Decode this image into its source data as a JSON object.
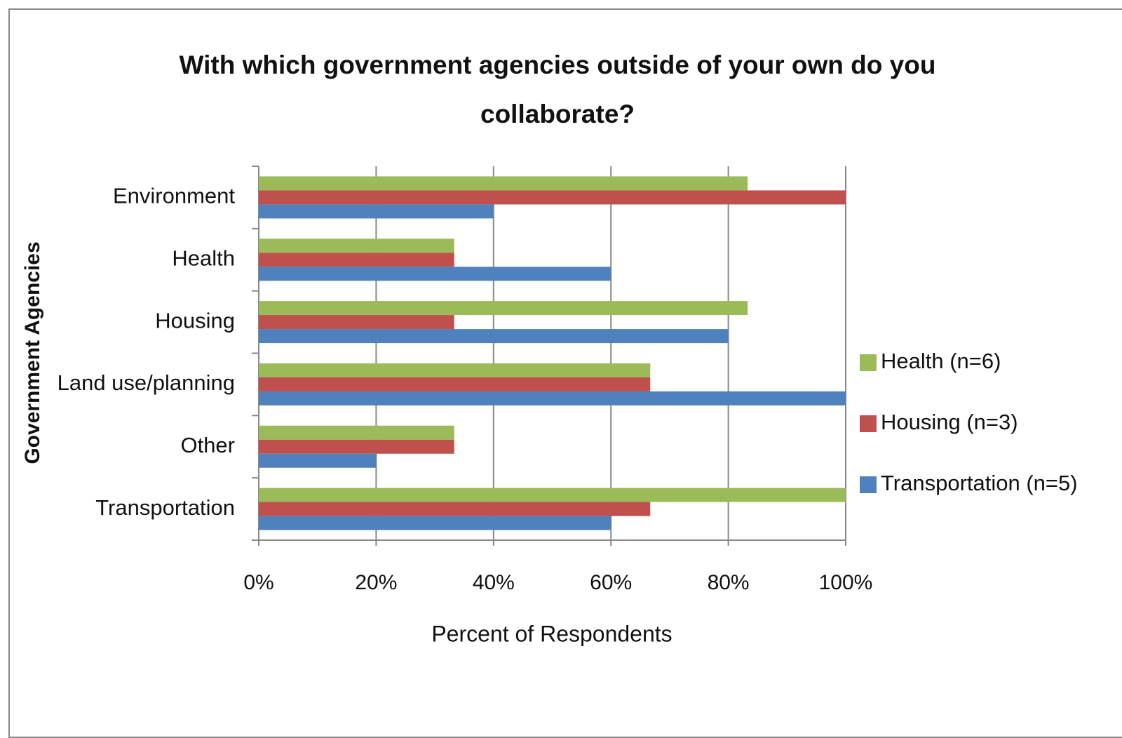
{
  "chart_data": {
    "type": "hbar",
    "title": "With which government agencies outside of your own do you collaborate?",
    "x_label": "Percent of Respondents",
    "y_label": "Government Agencies",
    "categories": [
      "Environment",
      "Health",
      "Housing",
      "Land use/planning",
      "Other",
      "Transportation"
    ],
    "series": [
      {
        "name": "Health (n=6)",
        "color": "#9bbb59",
        "values": [
          83.3,
          33.3,
          83.3,
          66.7,
          33.3,
          100
        ]
      },
      {
        "name": "Housing (n=3)",
        "color": "#c0504d",
        "values": [
          100,
          33.3,
          33.3,
          66.7,
          33.3,
          66.7
        ]
      },
      {
        "name": "Transportation (n=5)",
        "color": "#4f81bd",
        "values": [
          40,
          60,
          80,
          100,
          20,
          60
        ]
      }
    ],
    "xlim": [
      0,
      100
    ],
    "xticks": [
      {
        "value": 0,
        "label": "0%"
      },
      {
        "value": 20,
        "label": "20%"
      },
      {
        "value": 40,
        "label": "40%"
      },
      {
        "value": 60,
        "label": "60%"
      },
      {
        "value": 80,
        "label": "80%"
      },
      {
        "value": 100,
        "label": "100%"
      }
    ],
    "grid": true,
    "legend": "right"
  }
}
